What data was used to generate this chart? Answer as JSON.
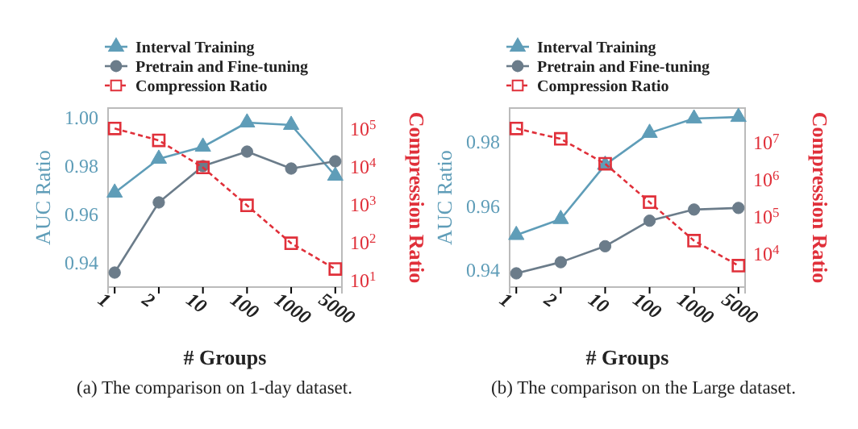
{
  "chart_data": [
    {
      "type": "line",
      "categories": [
        "1",
        "2",
        "10",
        "100",
        "1000",
        "5000"
      ],
      "xlabel": "# Groups",
      "ylabel": "AUC Ratio",
      "y2label": "Compression Ratio",
      "ylim": [
        0.93,
        1.004
      ],
      "yticks": [
        {
          "value": 0.94,
          "label": "0.94"
        },
        {
          "value": 0.96,
          "label": "0.96"
        },
        {
          "value": 0.98,
          "label": "0.98"
        },
        {
          "value": 1.0,
          "label": "1.00"
        }
      ],
      "y2lim": [
        7,
        370000
      ],
      "y2ticks": [
        {
          "value": 10,
          "label": "10$^{1}$"
        },
        {
          "value": 100,
          "label": "10$^{2}$"
        },
        {
          "value": 1000,
          "label": "10$^{3}$"
        },
        {
          "value": 10000,
          "label": "10$^{4}$"
        },
        {
          "value": 100000,
          "label": "10$^{5}$"
        }
      ],
      "log": "y2",
      "legend": "top",
      "annotations": [
        "(a)  The comparison on 1-day dataset."
      ],
      "series": [
        {
          "name": "Interval Training",
          "color": "#5f9db8",
          "marker": "triangle",
          "line_style": "solid",
          "values": [
            0.969,
            0.983,
            0.988,
            0.998,
            0.997,
            0.976
          ]
        },
        {
          "name": "Pretrain and Fine-tuning",
          "color": "#6b7c8a",
          "marker": "circle",
          "line_style": "solid",
          "values": [
            0.936,
            0.965,
            0.98,
            0.986,
            0.979,
            0.982
          ]
        },
        {
          "name": "Compression Ratio",
          "color": "#e0303a",
          "marker": "square",
          "line_style": "dashed",
          "axis": "y2",
          "values": [
            107000,
            52000,
            10000,
            1000,
            100,
            21
          ]
        }
      ]
    },
    {
      "type": "line",
      "categories": [
        "1",
        "2",
        "10",
        "100",
        "1000",
        "5000"
      ],
      "xlabel": "# Groups",
      "ylabel": "AUC Ratio",
      "y2label": "Compression Ratio",
      "ylim": [
        0.9347,
        0.9908
      ],
      "yticks": [
        {
          "value": 0.94,
          "label": "0.94"
        },
        {
          "value": 0.96,
          "label": "0.96"
        },
        {
          "value": 0.98,
          "label": "0.98"
        }
      ],
      "y2lim": [
        1300,
        85000000
      ],
      "y2ticks": [
        {
          "value": 10000,
          "label": "10$^{4}$"
        },
        {
          "value": 100000,
          "label": "10$^{5}$"
        },
        {
          "value": 1000000,
          "label": "10$^{6}$"
        },
        {
          "value": 10000000,
          "label": "10$^{7}$"
        }
      ],
      "log": "y2",
      "legend": "top",
      "annotations": [
        "(b)  The comparison on the Large dataset."
      ],
      "series": [
        {
          "name": "Interval Training",
          "color": "#5f9db8",
          "marker": "triangle",
          "line_style": "solid",
          "values": [
            0.951,
            0.956,
            0.973,
            0.983,
            0.9875,
            0.988
          ]
        },
        {
          "name": "Pretrain and Fine-tuning",
          "color": "#6b7c8a",
          "marker": "circle",
          "line_style": "solid",
          "values": [
            0.939,
            0.9425,
            0.9475,
            0.9555,
            0.959,
            0.9595
          ]
        },
        {
          "name": "Compression Ratio",
          "color": "#e0303a",
          "marker": "square",
          "line_style": "dashed",
          "axis": "y2",
          "values": [
            24000000,
            12600000,
            2700000,
            250000,
            23000,
            4900
          ]
        }
      ]
    }
  ]
}
